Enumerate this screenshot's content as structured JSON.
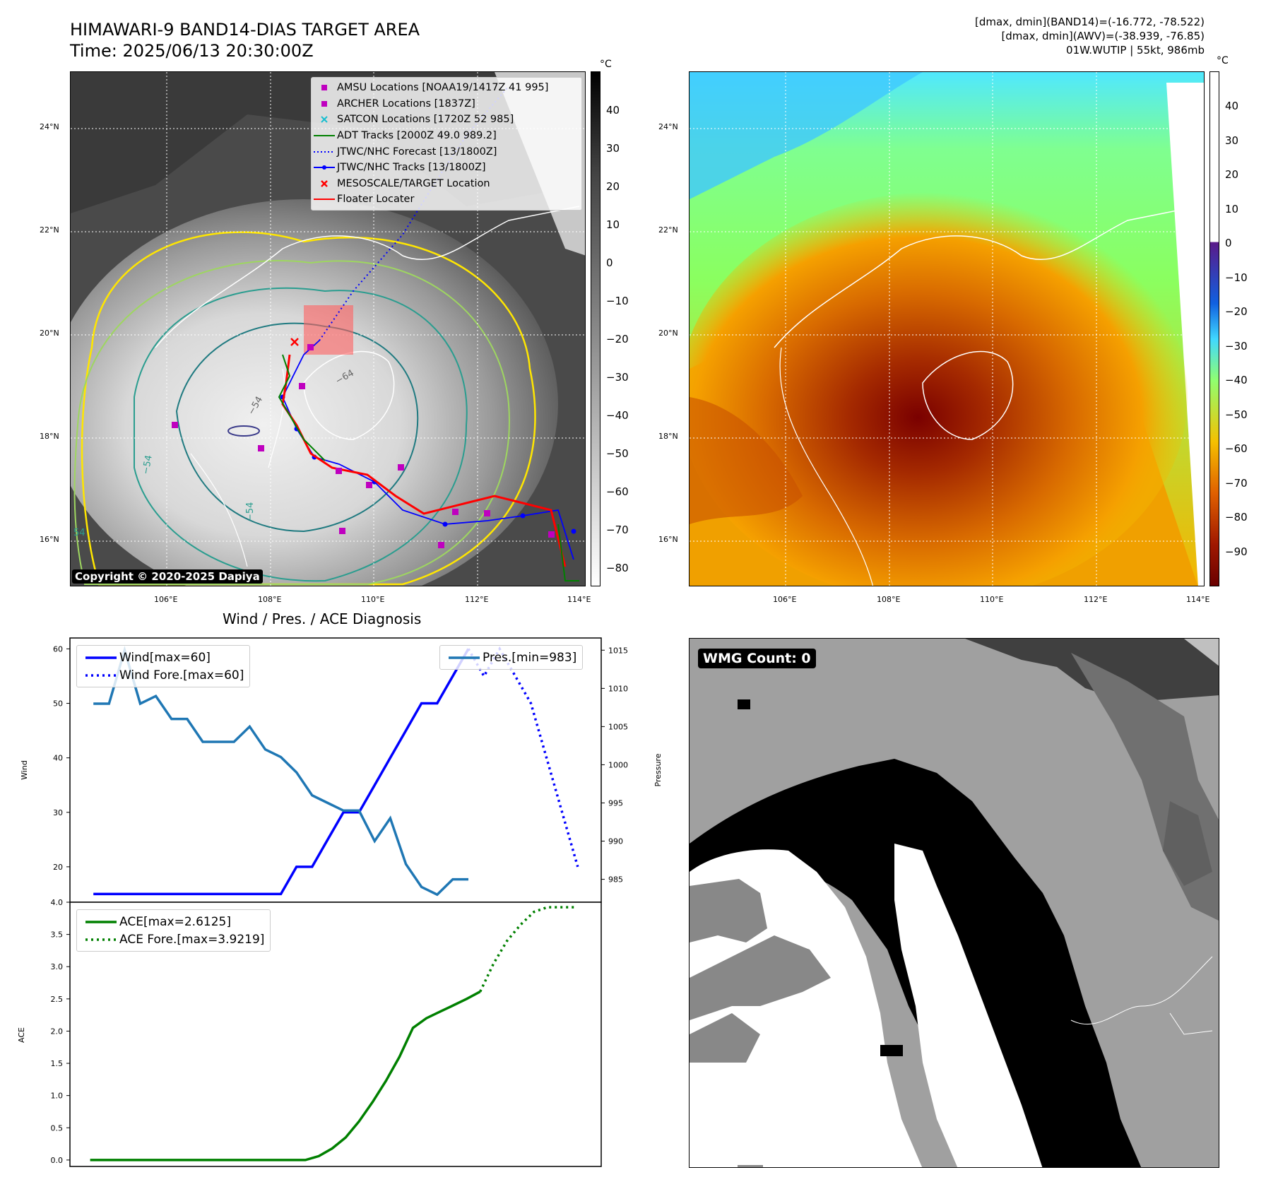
{
  "header": {
    "title_line1": "HIMAWARI-9 BAND14-DIAS TARGET AREA",
    "title_line2": "Time: 2025/06/13 20:30:00Z",
    "right_line1": "[dmax, dmin](BAND14)=(-16.772, -78.522)",
    "right_line2": "[dmax, dmin](AWV)=(-38.939, -76.85)",
    "right_line3": "01W.WUTIP | 55kt, 986mb"
  },
  "map_axes": {
    "lon_ticks": [
      "106°E",
      "108°E",
      "110°E",
      "112°E",
      "114°E"
    ],
    "lat_ticks": [
      "24°N",
      "22°N",
      "20°N",
      "18°N",
      "16°N"
    ]
  },
  "ir_panel": {
    "colorbar_unit": "°C",
    "colorbar_ticks": [
      "40",
      "30",
      "20",
      "10",
      "0",
      "−10",
      "−20",
      "−30",
      "−40",
      "−50",
      "−60",
      "−70",
      "−80"
    ],
    "contour_labels": [
      "−64",
      "−54",
      "−54",
      "−54",
      "54"
    ],
    "copyright": "Copyright © 2020-2025 Dapiya",
    "legend": [
      {
        "label": "AMSU Locations [NOAA19/1417Z 41 995]",
        "symbol": "square",
        "color": "#bf00bf"
      },
      {
        "label": "ARCHER Locations [1837Z]",
        "symbol": "square",
        "color": "#bf00bf"
      },
      {
        "label": "SATCON Locations [1720Z 52 985]",
        "symbol": "x",
        "color": "#17becf"
      },
      {
        "label": "ADT Tracks [2000Z 49.0 989.2]",
        "symbol": "line",
        "color": "#008000"
      },
      {
        "label": "JTWC/NHC Forecast [13/1800Z]",
        "symbol": "dotted",
        "color": "#0000ff"
      },
      {
        "label": "JTWC/NHC Tracks [13/1800Z]",
        "symbol": "line-dot",
        "color": "#0000ff"
      },
      {
        "label": "MESOSCALE/TARGET Location",
        "symbol": "x",
        "color": "#ff0000"
      },
      {
        "label": "Floater Locater",
        "symbol": "line",
        "color": "#ff0000"
      }
    ]
  },
  "awv_panel": {
    "colorbar_unit": "°C",
    "colorbar_ticks": [
      "40",
      "30",
      "20",
      "10",
      "0",
      "−10",
      "−20",
      "−30",
      "−40",
      "−50",
      "−60",
      "−70",
      "−80",
      "−90"
    ]
  },
  "wmg_panel": {
    "count_label": "WMG Count: 0"
  },
  "chart_data": [
    {
      "type": "line",
      "title": "Wind / Pres. / ACE Diagnosis",
      "ylabel": "Wind",
      "y2label": "Pressure",
      "ylim": [
        13.5,
        62
      ],
      "y2lim": [
        982,
        1016.6
      ],
      "yticks": [
        20,
        30,
        40,
        50,
        60
      ],
      "y2ticks": [
        985,
        990,
        995,
        1000,
        1005,
        1010,
        1015
      ],
      "series": [
        {
          "name": "Wind[max=60]",
          "color": "#0000ff",
          "style": "solid",
          "axis": "left",
          "x": [
            0,
            1,
            2,
            3,
            4,
            5,
            6,
            7,
            8,
            9,
            10,
            11,
            12,
            13,
            14,
            15,
            16,
            17,
            18,
            19,
            20,
            21,
            22,
            23,
            24
          ],
          "values": [
            15,
            15,
            15,
            15,
            15,
            15,
            15,
            15,
            15,
            15,
            15,
            15,
            15,
            20,
            20,
            25,
            30,
            30,
            35,
            40,
            45,
            50,
            50,
            55,
            60
          ]
        },
        {
          "name": "Wind Fore.[max=60]",
          "color": "#0000ff",
          "style": "dotted",
          "axis": "left",
          "x": [
            24,
            25,
            26,
            27,
            28,
            29,
            30,
            31
          ],
          "values": [
            60,
            55,
            60,
            55,
            50,
            40,
            30,
            20
          ]
        },
        {
          "name": "Pres.[min=983]",
          "color": "#1f77b4",
          "style": "solid",
          "axis": "right",
          "x": [
            0,
            1,
            2,
            3,
            4,
            5,
            6,
            7,
            8,
            9,
            10,
            11,
            12,
            13,
            14,
            15,
            16,
            17,
            18,
            19,
            20,
            21,
            22,
            23,
            24
          ],
          "values": [
            1008,
            1008,
            1015,
            1008,
            1009,
            1006,
            1006,
            1003,
            1003,
            1003,
            1005,
            1002,
            1001,
            999,
            996,
            995,
            994,
            994,
            990,
            993,
            987,
            984,
            983,
            985,
            985
          ]
        }
      ]
    },
    {
      "type": "line",
      "ylabel": "ACE",
      "ylim": [
        -0.1,
        4.0
      ],
      "yticks": [
        "0.0",
        "0.5",
        "1.0",
        "1.5",
        "2.0",
        "2.5",
        "3.0",
        "3.5",
        "4.0"
      ],
      "series": [
        {
          "name": "ACE[max=2.6125]",
          "color": "#008000",
          "style": "solid",
          "x": [
            0,
            16,
            17,
            18,
            19,
            20,
            21,
            22,
            23,
            24,
            25,
            26,
            27,
            28,
            29
          ],
          "values": [
            0,
            0,
            0.06,
            0.18,
            0.35,
            0.6,
            0.9,
            1.23,
            1.6,
            2.05,
            2.2,
            2.3,
            2.4,
            2.5,
            2.6125
          ]
        },
        {
          "name": "ACE Fore.[max=3.9219]",
          "color": "#008000",
          "style": "dotted",
          "x": [
            29,
            30,
            31,
            32,
            33,
            34,
            35,
            36
          ],
          "values": [
            2.6125,
            3.05,
            3.4,
            3.65,
            3.85,
            3.9219,
            3.9219,
            3.9219
          ]
        }
      ]
    }
  ]
}
